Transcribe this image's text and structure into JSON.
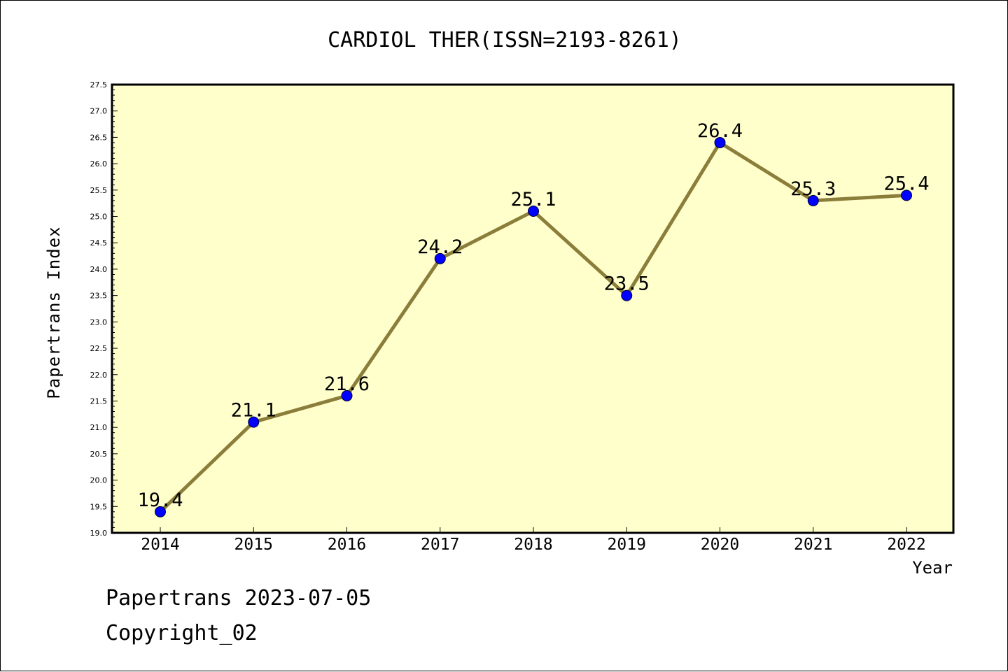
{
  "chart_data": {
    "type": "line",
    "title": "CARDIOL THER(ISSN=2193-8261)",
    "xlabel": "Year",
    "ylabel": "Papertrans Index",
    "categories": [
      "2014",
      "2015",
      "2016",
      "2017",
      "2018",
      "2019",
      "2020",
      "2021",
      "2022"
    ],
    "series": [
      {
        "values": [
          19.4,
          21.1,
          21.6,
          24.2,
          25.1,
          23.5,
          26.4,
          25.3,
          25.4
        ]
      }
    ],
    "data_labels": [
      "19.4",
      "21.1",
      "21.6",
      "24.2",
      "25.1",
      "23.5",
      "26.4",
      "25.3",
      "25.4"
    ],
    "ylim": [
      19.0,
      27.5
    ],
    "ytick_labels": [
      "19.0",
      "19.5",
      "20.0",
      "20.5",
      "21.0",
      "21.5",
      "22.0",
      "22.5",
      "23.0",
      "23.5",
      "24.0",
      "24.5",
      "25.0",
      "25.5",
      "26.0",
      "26.5",
      "27.0",
      "27.5"
    ],
    "grid": false,
    "colors": {
      "plot_background": "#ffffcc",
      "line": "#8b7d3a",
      "marker": "#0000ff"
    }
  },
  "footer": {
    "line1": "Papertrans 2023-07-05",
    "line2": "Copyright_02"
  }
}
